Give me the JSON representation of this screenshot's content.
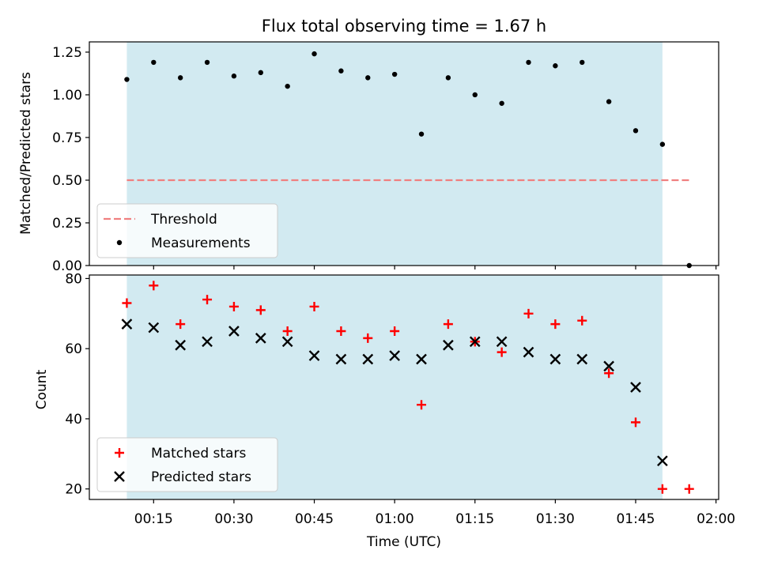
{
  "chart_data": [
    {
      "type": "scatter",
      "title": "Flux total observing time = 1.67 h",
      "xlabel": "",
      "ylabel": "Matched/Predicted stars",
      "xlim": [
        "00:03:00",
        "02:00:30"
      ],
      "ylim": [
        0,
        1.31
      ],
      "yticks": [
        0,
        0.25,
        0.5,
        0.75,
        1.0,
        1.25
      ],
      "ytick_labels": [
        "0.00",
        "0.25",
        "0.50",
        "0.75",
        "1.00",
        "1.25"
      ],
      "shaded_span": {
        "start": "00:10",
        "end": "01:50",
        "color": "#add8e6"
      },
      "series": [
        {
          "name": "Threshold",
          "kind": "line",
          "style": "dashed",
          "color": "#f08080",
          "x": [
            "00:10",
            "01:55"
          ],
          "values": [
            0.5,
            0.5
          ]
        },
        {
          "name": "Measurements",
          "kind": "scatter",
          "marker": "dot",
          "color": "#000000",
          "x": [
            "00:10",
            "00:15",
            "00:20",
            "00:25",
            "00:30",
            "00:35",
            "00:40",
            "00:45",
            "00:50",
            "00:55",
            "01:00",
            "01:05",
            "01:10",
            "01:15",
            "01:20",
            "01:25",
            "01:30",
            "01:35",
            "01:40",
            "01:45",
            "01:50",
            "01:55"
          ],
          "values": [
            1.09,
            1.19,
            1.1,
            1.19,
            1.11,
            1.13,
            1.05,
            1.24,
            1.14,
            1.1,
            1.12,
            0.77,
            1.1,
            1.0,
            0.95,
            1.19,
            1.17,
            1.19,
            0.96,
            0.79,
            0.71,
            0.0
          ]
        }
      ],
      "legend": {
        "position": "lower-left"
      }
    },
    {
      "type": "scatter",
      "title": "",
      "xlabel": "Time (UTC)",
      "ylabel": "Count",
      "xlim": [
        "00:03:00",
        "02:00:30"
      ],
      "ylim": [
        17,
        81
      ],
      "xticks": [
        "00:15",
        "00:30",
        "00:45",
        "01:00",
        "01:15",
        "01:30",
        "01:45",
        "02:00"
      ],
      "yticks": [
        20,
        40,
        60,
        80
      ],
      "ytick_labels": [
        "20",
        "40",
        "60",
        "80"
      ],
      "shaded_span": {
        "start": "00:10",
        "end": "01:50",
        "color": "#add8e6"
      },
      "series": [
        {
          "name": "Matched stars",
          "kind": "scatter",
          "marker": "plus",
          "color": "#ff0000",
          "x": [
            "00:10",
            "00:15",
            "00:20",
            "00:25",
            "00:30",
            "00:35",
            "00:40",
            "00:45",
            "00:50",
            "00:55",
            "01:00",
            "01:05",
            "01:10",
            "01:15",
            "01:20",
            "01:25",
            "01:30",
            "01:35",
            "01:40",
            "01:45",
            "01:50",
            "01:55"
          ],
          "values": [
            73,
            78,
            67,
            74,
            72,
            71,
            65,
            72,
            65,
            63,
            65,
            44,
            67,
            62,
            59,
            70,
            67,
            68,
            53,
            39,
            20,
            20
          ]
        },
        {
          "name": "Predicted stars",
          "kind": "scatter",
          "marker": "x",
          "color": "#000000",
          "x": [
            "00:10",
            "00:15",
            "00:20",
            "00:25",
            "00:30",
            "00:35",
            "00:40",
            "00:45",
            "00:50",
            "00:55",
            "01:00",
            "01:05",
            "01:10",
            "01:15",
            "01:20",
            "01:25",
            "01:30",
            "01:35",
            "01:40",
            "01:45",
            "01:50"
          ],
          "values": [
            67,
            66,
            61,
            62,
            65,
            63,
            62,
            58,
            57,
            57,
            58,
            57,
            61,
            62,
            62,
            59,
            57,
            57,
            55,
            49,
            28
          ]
        }
      ],
      "legend": {
        "position": "lower-left"
      }
    }
  ]
}
